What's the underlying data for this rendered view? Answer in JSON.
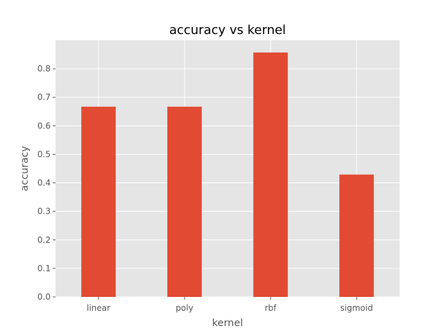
{
  "chart_data": {
    "type": "bar",
    "title": "accuracy vs kernel",
    "xlabel": "kernel",
    "ylabel": "accuracy",
    "categories": [
      "linear",
      "poly",
      "rbf",
      "sigmoid"
    ],
    "values": [
      0.667,
      0.667,
      0.857,
      0.429
    ],
    "ylim": [
      0,
      0.9
    ],
    "yticks": [
      "0.0",
      "0.1",
      "0.2",
      "0.3",
      "0.4",
      "0.5",
      "0.6",
      "0.7",
      "0.8"
    ],
    "grid": true,
    "style": "ggplot",
    "colors": {
      "bar": "#E24A33",
      "plot_background": "#E5E5E5",
      "grid": "#FFFFFF",
      "text": "#555555"
    }
  }
}
